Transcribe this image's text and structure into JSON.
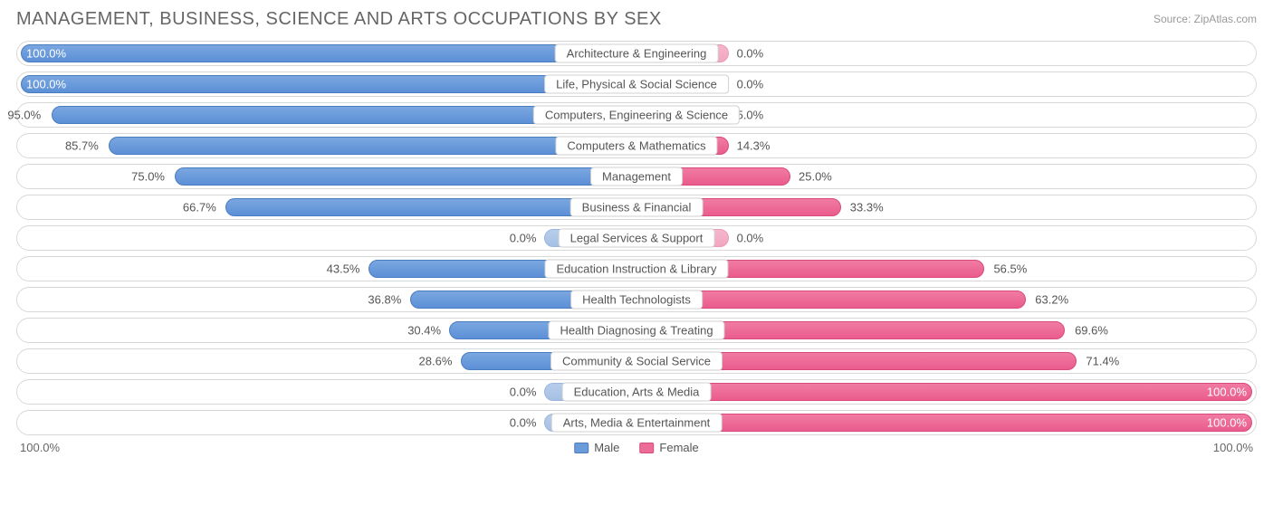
{
  "title": "MANAGEMENT, BUSINESS, SCIENCE AND ARTS OCCUPATIONS BY SEX",
  "source_label": "Source:",
  "source_name": "ZipAtlas.com",
  "chart": {
    "type": "diverging-bar",
    "background_color": "#ffffff",
    "row_border_color": "#d8d8d8",
    "male_color": "#6b9bd9",
    "male_color_faded": "#a6c0e5",
    "female_color": "#ec6b97",
    "female_color_faded": "#f2a6c0",
    "text_color": "#555555",
    "min_bar_pct": 15,
    "rows": [
      {
        "category": "Architecture & Engineering",
        "male": 100.0,
        "female": 0.0
      },
      {
        "category": "Life, Physical & Social Science",
        "male": 100.0,
        "female": 0.0
      },
      {
        "category": "Computers, Engineering & Science",
        "male": 95.0,
        "female": 5.0
      },
      {
        "category": "Computers & Mathematics",
        "male": 85.7,
        "female": 14.3
      },
      {
        "category": "Management",
        "male": 75.0,
        "female": 25.0
      },
      {
        "category": "Business & Financial",
        "male": 66.7,
        "female": 33.3
      },
      {
        "category": "Legal Services & Support",
        "male": 0.0,
        "female": 0.0
      },
      {
        "category": "Education Instruction & Library",
        "male": 43.5,
        "female": 56.5
      },
      {
        "category": "Health Technologists",
        "male": 36.8,
        "female": 63.2
      },
      {
        "category": "Health Diagnosing & Treating",
        "male": 30.4,
        "female": 69.6
      },
      {
        "category": "Community & Social Service",
        "male": 28.6,
        "female": 71.4
      },
      {
        "category": "Education, Arts & Media",
        "male": 0.0,
        "female": 100.0
      },
      {
        "category": "Arts, Media & Entertainment",
        "male": 0.0,
        "female": 100.0
      }
    ],
    "axis": {
      "left": "100.0%",
      "right": "100.0%"
    },
    "legend": {
      "male": "Male",
      "female": "Female"
    }
  }
}
